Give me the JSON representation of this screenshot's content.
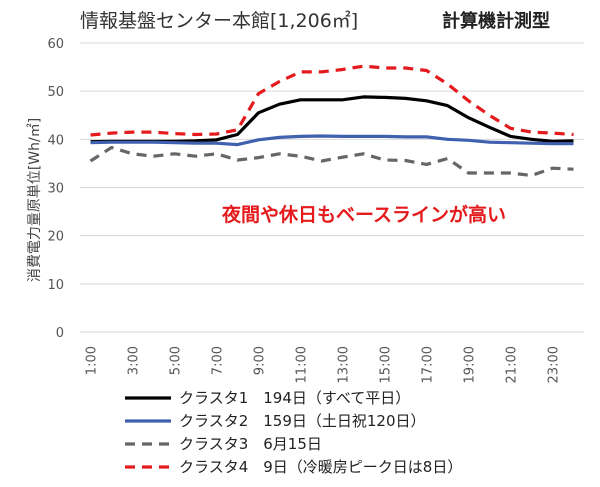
{
  "chart_data": {
    "type": "line",
    "title": "情報基盤センター本館[1,206㎡]",
    "subtitle": "計算機計測型",
    "ylabel": "消費電力量原単位[Wh/㎡]",
    "xlabel": "",
    "ylim": [
      0,
      60
    ],
    "yticks": [
      "0",
      "10",
      "20",
      "30",
      "40",
      "50",
      "60"
    ],
    "grid": true,
    "legend_position": "bottom",
    "annotation": "夜間や休日もベースラインが高い",
    "x": [
      "1:00",
      "2:00",
      "3:00",
      "4:00",
      "5:00",
      "6:00",
      "7:00",
      "8:00",
      "9:00",
      "10:00",
      "11:00",
      "12:00",
      "13:00",
      "14:00",
      "15:00",
      "16:00",
      "17:00",
      "18:00",
      "19:00",
      "20:00",
      "21:00",
      "22:00",
      "23:00",
      "24:00"
    ],
    "xtick_labels": [
      "1:00",
      "3:00",
      "5:00",
      "7:00",
      "9:00",
      "11:00",
      "13:00",
      "15:00",
      "17:00",
      "19:00",
      "21:00",
      "23:00"
    ],
    "series": [
      {
        "name": "クラスタ1",
        "legend_text": "クラスタ1　194日（すべて平日）",
        "color": "#000000",
        "dash": "solid",
        "values": [
          39.5,
          39.6,
          39.6,
          39.6,
          39.6,
          39.7,
          39.9,
          41.0,
          45.5,
          47.3,
          48.2,
          48.2,
          48.2,
          48.8,
          48.7,
          48.5,
          48.0,
          47.0,
          44.5,
          42.5,
          40.6,
          40.0,
          39.6,
          39.7
        ]
      },
      {
        "name": "クラスタ2",
        "legend_text": "クラスタ2　159日（土日祝120日）",
        "color": "#4060b0",
        "dash": "solid",
        "values": [
          39.3,
          39.4,
          39.4,
          39.4,
          39.3,
          39.2,
          39.2,
          38.9,
          39.9,
          40.4,
          40.6,
          40.7,
          40.6,
          40.6,
          40.6,
          40.5,
          40.5,
          40.0,
          39.8,
          39.4,
          39.3,
          39.2,
          39.1,
          39.1
        ]
      },
      {
        "name": "クラスタ3",
        "legend_text": "クラスタ3　6月15日",
        "color": "#666666",
        "dash": "dashed",
        "values": [
          35.5,
          38.3,
          37.0,
          36.5,
          37.0,
          36.5,
          37.0,
          35.7,
          36.2,
          37.0,
          36.5,
          35.5,
          36.3,
          37.0,
          35.7,
          35.6,
          34.8,
          36.0,
          33.0,
          33.0,
          33.0,
          32.5,
          34.0,
          33.8
        ]
      },
      {
        "name": "クラスタ4",
        "legend_text": "クラスタ4　9日（冷暖房ピーク日は8日）",
        "color": "#e41a1c",
        "dash": "dashed",
        "values": [
          40.9,
          41.3,
          41.5,
          41.5,
          41.2,
          41.0,
          41.1,
          42.0,
          49.5,
          52.0,
          54.0,
          54.0,
          54.5,
          55.2,
          54.8,
          54.8,
          54.3,
          51.5,
          48.0,
          45.0,
          42.3,
          41.5,
          41.3,
          41.0
        ]
      }
    ]
  }
}
